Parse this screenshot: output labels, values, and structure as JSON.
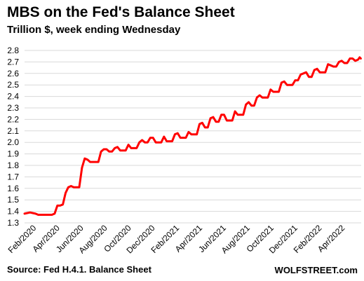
{
  "chart_data": {
    "type": "line",
    "title": "MBS on the Fed's Balance Sheet",
    "subtitle": "Trillion $, week ending Wednesday",
    "xlabel": "",
    "ylabel": "",
    "ylim": [
      1.3,
      2.8
    ],
    "yticks": [
      "1.3",
      "1.4",
      "1.5",
      "1.6",
      "1.7",
      "1.8",
      "1.9",
      "2.0",
      "2.1",
      "2.2",
      "2.3",
      "2.4",
      "2.5",
      "2.6",
      "2.7",
      "2.8"
    ],
    "xticks": [
      {
        "label": "Feb/2020",
        "x": "2020-02-01"
      },
      {
        "label": "Apr/2020",
        "x": "2020-04-01"
      },
      {
        "label": "Jun/2020",
        "x": "2020-06-01"
      },
      {
        "label": "Aug/2020",
        "x": "2020-08-01"
      },
      {
        "label": "Oct/2020",
        "x": "2020-10-01"
      },
      {
        "label": "Dec/2020",
        "x": "2020-12-01"
      },
      {
        "label": "Feb/2021",
        "x": "2021-02-01"
      },
      {
        "label": "Apr/2021",
        "x": "2021-04-01"
      },
      {
        "label": "Jun/2021",
        "x": "2021-06-01"
      },
      {
        "label": "Aug/2021",
        "x": "2021-08-01"
      },
      {
        "label": "Oct/2021",
        "x": "2021-10-01"
      },
      {
        "label": "Dec/2021",
        "x": "2021-12-01"
      },
      {
        "label": "Feb/2022",
        "x": "2022-02-01"
      },
      {
        "label": "Apr/2022",
        "x": "2022-04-01"
      }
    ],
    "xlim": [
      "2020-01-01",
      "2022-05-12"
    ],
    "grid": true,
    "series_color": "#ff0000",
    "series": [
      {
        "values": [
          [
            "2020-01-01",
            1.38
          ],
          [
            "2020-01-15",
            1.39
          ],
          [
            "2020-01-29",
            1.38
          ],
          [
            "2020-02-05",
            1.37
          ],
          [
            "2020-02-19",
            1.37
          ],
          [
            "2020-03-04",
            1.37
          ],
          [
            "2020-03-11",
            1.37
          ],
          [
            "2020-03-18",
            1.38
          ],
          [
            "2020-03-25",
            1.45
          ],
          [
            "2020-04-01",
            1.45
          ],
          [
            "2020-04-08",
            1.46
          ],
          [
            "2020-04-15",
            1.56
          ],
          [
            "2020-04-22",
            1.61
          ],
          [
            "2020-04-29",
            1.62
          ],
          [
            "2020-05-06",
            1.61
          ],
          [
            "2020-05-13",
            1.61
          ],
          [
            "2020-05-20",
            1.61
          ],
          [
            "2020-05-27",
            1.78
          ],
          [
            "2020-06-03",
            1.86
          ],
          [
            "2020-06-10",
            1.85
          ],
          [
            "2020-06-17",
            1.83
          ],
          [
            "2020-06-24",
            1.83
          ],
          [
            "2020-07-01",
            1.83
          ],
          [
            "2020-07-08",
            1.83
          ],
          [
            "2020-07-15",
            1.92
          ],
          [
            "2020-07-22",
            1.94
          ],
          [
            "2020-07-29",
            1.94
          ],
          [
            "2020-08-05",
            1.92
          ],
          [
            "2020-08-12",
            1.92
          ],
          [
            "2020-08-19",
            1.95
          ],
          [
            "2020-08-26",
            1.96
          ],
          [
            "2020-09-02",
            1.93
          ],
          [
            "2020-09-09",
            1.93
          ],
          [
            "2020-09-16",
            1.93
          ],
          [
            "2020-09-23",
            1.98
          ],
          [
            "2020-09-30",
            1.95
          ],
          [
            "2020-10-07",
            1.95
          ],
          [
            "2020-10-14",
            1.95
          ],
          [
            "2020-10-21",
            2.0
          ],
          [
            "2020-10-28",
            2.02
          ],
          [
            "2020-11-04",
            2.0
          ],
          [
            "2020-11-11",
            2.0
          ],
          [
            "2020-11-18",
            2.04
          ],
          [
            "2020-11-25",
            2.04
          ],
          [
            "2020-12-02",
            2.0
          ],
          [
            "2020-12-09",
            2.0
          ],
          [
            "2020-12-16",
            2.0
          ],
          [
            "2020-12-23",
            2.05
          ],
          [
            "2020-12-30",
            2.01
          ],
          [
            "2021-01-06",
            2.01
          ],
          [
            "2021-01-13",
            2.01
          ],
          [
            "2021-01-20",
            2.07
          ],
          [
            "2021-01-27",
            2.08
          ],
          [
            "2021-02-03",
            2.04
          ],
          [
            "2021-02-10",
            2.04
          ],
          [
            "2021-02-17",
            2.04
          ],
          [
            "2021-02-24",
            2.09
          ],
          [
            "2021-03-03",
            2.07
          ],
          [
            "2021-03-10",
            2.07
          ],
          [
            "2021-03-17",
            2.07
          ],
          [
            "2021-03-24",
            2.16
          ],
          [
            "2021-03-31",
            2.17
          ],
          [
            "2021-04-07",
            2.13
          ],
          [
            "2021-04-14",
            2.13
          ],
          [
            "2021-04-21",
            2.21
          ],
          [
            "2021-04-28",
            2.22
          ],
          [
            "2021-05-05",
            2.18
          ],
          [
            "2021-05-12",
            2.18
          ],
          [
            "2021-05-19",
            2.24
          ],
          [
            "2021-05-26",
            2.24
          ],
          [
            "2021-06-02",
            2.19
          ],
          [
            "2021-06-09",
            2.19
          ],
          [
            "2021-06-16",
            2.19
          ],
          [
            "2021-06-23",
            2.27
          ],
          [
            "2021-06-30",
            2.24
          ],
          [
            "2021-07-07",
            2.24
          ],
          [
            "2021-07-14",
            2.24
          ],
          [
            "2021-07-21",
            2.33
          ],
          [
            "2021-07-28",
            2.35
          ],
          [
            "2021-08-04",
            2.32
          ],
          [
            "2021-08-11",
            2.32
          ],
          [
            "2021-08-18",
            2.39
          ],
          [
            "2021-08-25",
            2.41
          ],
          [
            "2021-09-01",
            2.39
          ],
          [
            "2021-09-08",
            2.39
          ],
          [
            "2021-09-15",
            2.39
          ],
          [
            "2021-09-22",
            2.46
          ],
          [
            "2021-09-29",
            2.44
          ],
          [
            "2021-10-06",
            2.44
          ],
          [
            "2021-10-13",
            2.44
          ],
          [
            "2021-10-20",
            2.52
          ],
          [
            "2021-10-27",
            2.53
          ],
          [
            "2021-11-03",
            2.5
          ],
          [
            "2021-11-10",
            2.5
          ],
          [
            "2021-11-17",
            2.5
          ],
          [
            "2021-11-24",
            2.54
          ],
          [
            "2021-12-01",
            2.54
          ],
          [
            "2021-12-08",
            2.59
          ],
          [
            "2021-12-15",
            2.6
          ],
          [
            "2021-12-22",
            2.61
          ],
          [
            "2021-12-29",
            2.57
          ],
          [
            "2022-01-05",
            2.57
          ],
          [
            "2022-01-12",
            2.63
          ],
          [
            "2022-01-19",
            2.64
          ],
          [
            "2022-01-26",
            2.61
          ],
          [
            "2022-02-02",
            2.61
          ],
          [
            "2022-02-09",
            2.61
          ],
          [
            "2022-02-16",
            2.68
          ],
          [
            "2022-02-23",
            2.67
          ],
          [
            "2022-03-02",
            2.66
          ],
          [
            "2022-03-09",
            2.66
          ],
          [
            "2022-03-16",
            2.7
          ],
          [
            "2022-03-23",
            2.71
          ],
          [
            "2022-03-30",
            2.69
          ],
          [
            "2022-04-06",
            2.69
          ],
          [
            "2022-04-13",
            2.73
          ],
          [
            "2022-04-20",
            2.73
          ],
          [
            "2022-04-27",
            2.71
          ],
          [
            "2022-05-04",
            2.72
          ],
          [
            "2022-05-08",
            2.74
          ],
          [
            "2022-05-11",
            2.73
          ]
        ]
      }
    ]
  },
  "footer": {
    "source": "Source: Fed H.4.1. Balance Sheet",
    "brand": "WOLFSTREET.com"
  }
}
